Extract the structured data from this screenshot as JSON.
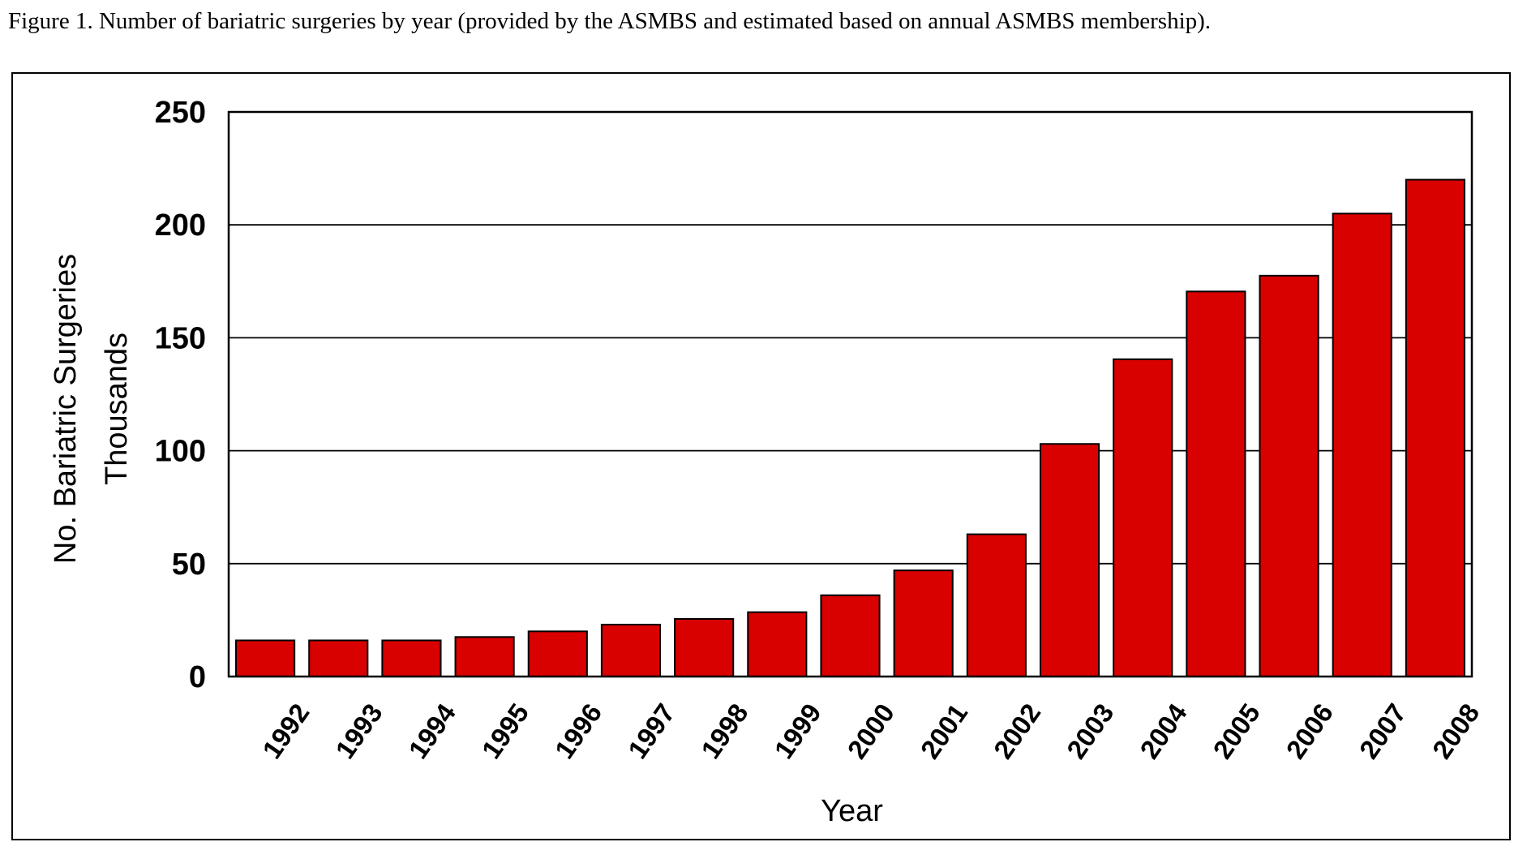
{
  "caption": "Figure 1. Number of bariatric surgeries by year (provided by the ASMBS and estimated based on annual ASMBS membership).",
  "chart_data": {
    "type": "bar",
    "categories": [
      "1992",
      "1993",
      "1994",
      "1995",
      "1996",
      "1997",
      "1998",
      "1999",
      "2000",
      "2001",
      "2002",
      "2003",
      "2004",
      "2005",
      "2006",
      "2007",
      "2008"
    ],
    "values": [
      16,
      16,
      16,
      17.5,
      20,
      23,
      25.5,
      28.5,
      36,
      47,
      63,
      103,
      140.5,
      170.5,
      177.5,
      205,
      220
    ],
    "xlabel": "Year",
    "ylabel_line1": "No. Bariatric Surgeries",
    "ylabel_line2": "Thousands",
    "ylim": [
      0,
      250
    ],
    "yticks": [
      "0",
      "50",
      "100",
      "150",
      "200",
      "250"
    ],
    "grid": true,
    "bar_color": "#d90000"
  }
}
